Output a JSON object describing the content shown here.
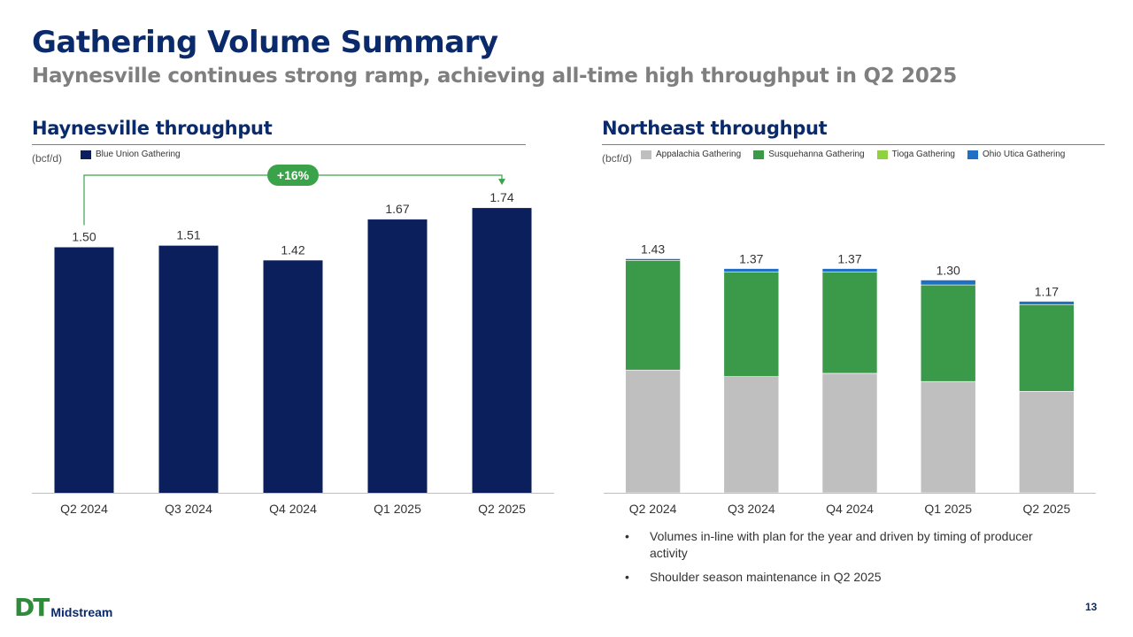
{
  "header": {
    "title": "Gathering Volume Summary",
    "subtitle": "Haynesville continues strong ramp, achieving all-time high throughput in Q2 2025"
  },
  "left_panel": {
    "title": "Haynesville throughput",
    "unit": "(bcf/d)",
    "legend": [
      {
        "label": "Blue Union Gathering",
        "color": "#0b1f5c"
      }
    ],
    "growth_label": "+16%",
    "growth_color": "#3aa34a"
  },
  "right_panel": {
    "title": "Northeast throughput",
    "unit": "(bcf/d)",
    "legend": [
      {
        "label": "Appalachia Gathering",
        "color": "#bfbfbf"
      },
      {
        "label": "Susquehanna Gathering",
        "color": "#3a9a4a"
      },
      {
        "label": "Tioga Gathering",
        "color": "#8fd13f"
      },
      {
        "label": "Ohio Utica Gathering",
        "color": "#1f6fc5"
      }
    ],
    "bullets": [
      "Volumes in-line with plan for the year and driven by timing of producer activity",
      "Shoulder season maintenance in Q2 2025"
    ]
  },
  "chart_data": [
    {
      "type": "bar",
      "title": "Haynesville throughput",
      "ylabel": "(bcf/d)",
      "categories": [
        "Q2 2024",
        "Q3 2024",
        "Q4 2024",
        "Q1 2025",
        "Q2 2025"
      ],
      "series": [
        {
          "name": "Blue Union Gathering",
          "values": [
            1.5,
            1.51,
            1.42,
            1.67,
            1.74
          ],
          "color": "#0b1f5c"
        }
      ],
      "labels": [
        "1.50",
        "1.51",
        "1.42",
        "1.67",
        "1.74"
      ],
      "ylim": [
        0,
        2.0
      ]
    },
    {
      "type": "bar",
      "stacked": true,
      "title": "Northeast throughput",
      "ylabel": "(bcf/d)",
      "categories": [
        "Q2 2024",
        "Q3 2024",
        "Q4 2024",
        "Q1 2025",
        "Q2 2025"
      ],
      "series": [
        {
          "name": "Appalachia Gathering",
          "values": [
            0.75,
            0.71,
            0.73,
            0.68,
            0.62
          ],
          "color": "#bfbfbf"
        },
        {
          "name": "Susquehanna Gathering",
          "values": [
            0.67,
            0.64,
            0.62,
            0.59,
            0.53
          ],
          "color": "#3a9a4a"
        },
        {
          "name": "Tioga Gathering",
          "values": [
            0.0,
            0.0,
            0.0,
            0.0,
            0.0
          ],
          "color": "#8fd13f"
        },
        {
          "name": "Ohio Utica Gathering",
          "values": [
            0.01,
            0.02,
            0.02,
            0.03,
            0.02
          ],
          "color": "#1f6fc5"
        }
      ],
      "totals": [
        "1.43",
        "1.37",
        "1.37",
        "1.30",
        "1.17"
      ],
      "ylim": [
        0,
        2.0
      ]
    }
  ],
  "footer": {
    "logo_mark": "DT",
    "logo_text": "Midstream",
    "page_number": "13"
  }
}
